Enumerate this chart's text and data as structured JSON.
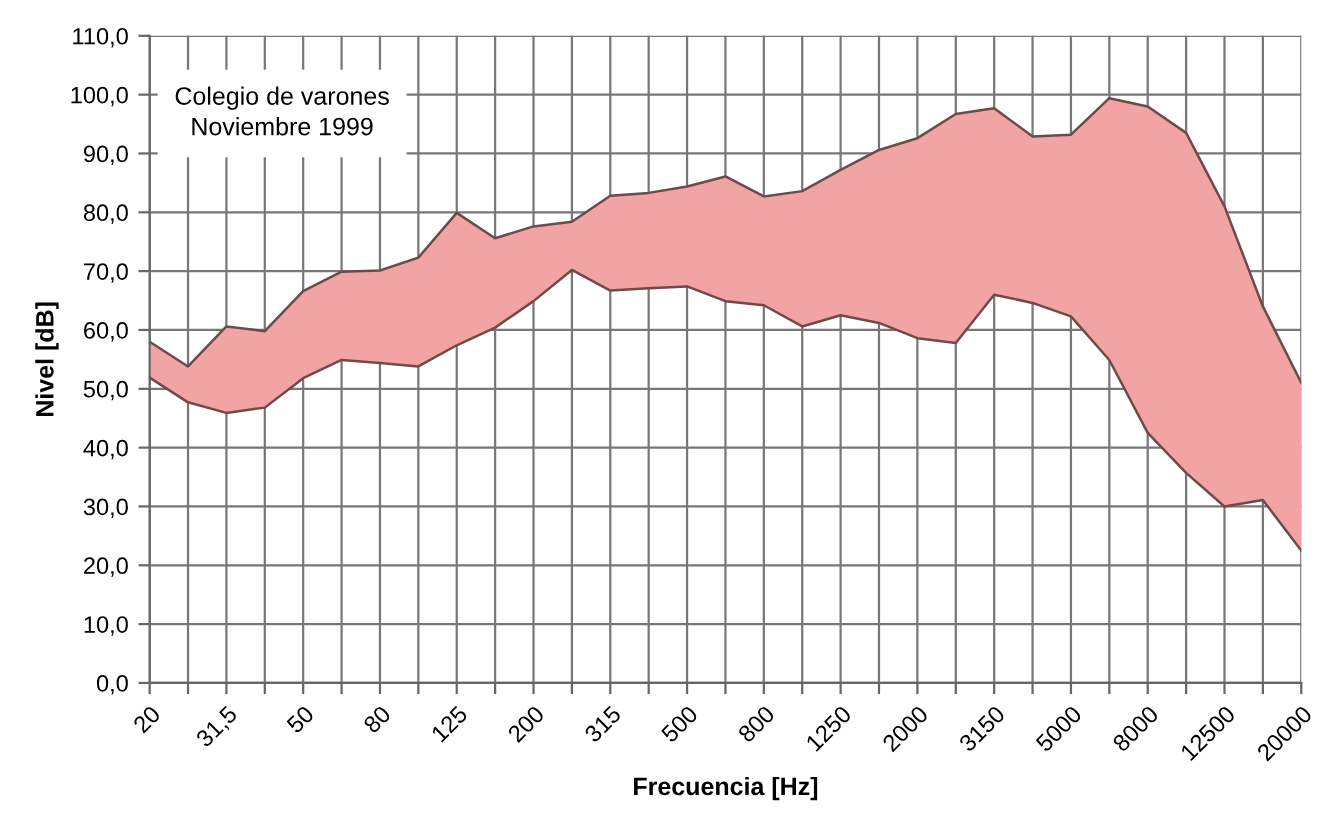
{
  "chart_data": {
    "type": "line",
    "xlabel": "Frecuencia [Hz]",
    "ylabel": "Nivel [dB]",
    "annotations": [
      "Colegio de varones\nNoviembre 1999"
    ],
    "categories": [
      "20",
      null,
      "31,5",
      null,
      "50",
      null,
      "80",
      null,
      "125",
      null,
      "200",
      null,
      "315",
      null,
      "500",
      null,
      "800",
      null,
      "1250",
      null,
      "2000",
      null,
      "3150",
      null,
      "5000",
      null,
      "8000",
      null,
      "12500",
      null,
      "20000"
    ],
    "series": [
      {
        "color": "#6e4a4a",
        "values": [
          51.9,
          47.7,
          45.9,
          46.8,
          51.8,
          54.9,
          54.4,
          53.8,
          57.4,
          60.4,
          64.9,
          70.2,
          66.7,
          67.1,
          67.4,
          64.9,
          64.2,
          60.6,
          62.5,
          61.2,
          58.6,
          57.8,
          66.0,
          64.6,
          62.3,
          54.9,
          42.5,
          35.7,
          30.0,
          31.1,
          22.5
        ]
      },
      {
        "color": "#6e4a4a",
        "values": [
          58.0,
          53.8,
          60.6,
          59.8,
          66.6,
          69.9,
          70.1,
          72.3,
          79.9,
          75.6,
          77.6,
          78.4,
          82.8,
          83.3,
          84.4,
          86.1,
          82.7,
          83.6,
          87.2,
          90.6,
          92.6,
          96.7,
          97.7,
          92.9,
          93.2,
          99.4,
          98.0,
          93.5,
          81.0,
          64.0,
          51.0
        ],
        "lower": [
          51.9,
          47.7,
          45.9,
          46.8,
          51.8,
          54.9,
          54.4,
          53.8,
          57.4,
          60.4,
          64.9,
          70.2,
          66.7,
          67.1,
          67.4,
          64.9,
          64.2,
          60.6,
          62.5,
          61.2,
          58.6,
          57.8,
          66.0,
          64.6,
          62.3,
          54.9,
          42.5,
          35.7,
          30.0,
          31.1,
          22.5
        ],
        "upper": [
          58.0,
          53.8,
          60.6,
          59.8,
          66.6,
          69.9,
          70.1,
          72.3,
          79.9,
          75.6,
          77.6,
          78.4,
          82.8,
          83.3,
          84.4,
          86.1,
          82.7,
          83.6,
          87.2,
          90.6,
          92.6,
          96.7,
          97.7,
          92.9,
          93.2,
          99.4,
          98.0,
          93.5,
          81.0,
          64.0,
          51.0
        ]
      }
    ],
    "ylim": [
      0,
      110
    ],
    "yticks": [
      {
        "value": 0,
        "label": "0,0"
      },
      {
        "value": 10,
        "label": "10,0"
      },
      {
        "value": 20,
        "label": "20,0"
      },
      {
        "value": 30,
        "label": "30,0"
      },
      {
        "value": 40,
        "label": "40,0"
      },
      {
        "value": 50,
        "label": "50,0"
      },
      {
        "value": 60,
        "label": "60,0"
      },
      {
        "value": 70,
        "label": "70,0"
      },
      {
        "value": 80,
        "label": "80,0"
      },
      {
        "value": 90,
        "label": "90,0"
      },
      {
        "value": 100,
        "label": "100,0"
      },
      {
        "value": 110,
        "label": "110,0"
      }
    ],
    "grid": true,
    "legend": false
  }
}
